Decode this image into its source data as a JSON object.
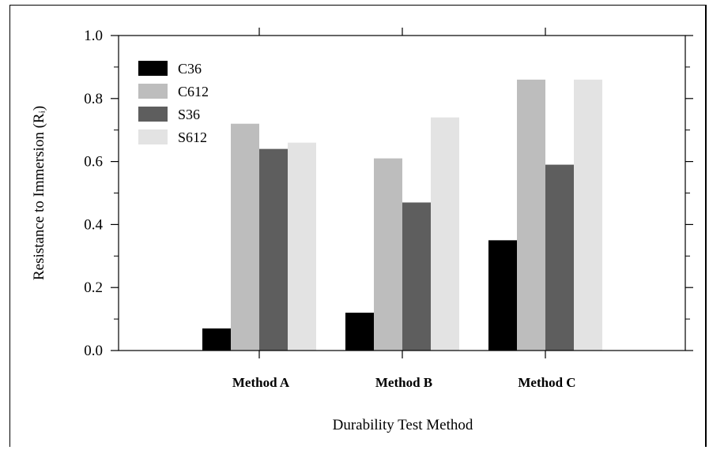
{
  "chart_data": {
    "type": "bar",
    "title": "",
    "xlabel": "Durability Test Method",
    "ylabel": "Resistance to Immersion (Rᵢ)",
    "ylim": [
      0,
      1.0
    ],
    "yticks": [
      "0.0",
      "0.2",
      "0.4",
      "0.6",
      "0.8",
      "1.0"
    ],
    "grid": false,
    "legend_position": "top-left",
    "categories": [
      "Method A",
      "Method B",
      "Method C"
    ],
    "series": [
      {
        "name": "C36",
        "color": "#000000",
        "values": [
          0.07,
          0.12,
          0.35
        ]
      },
      {
        "name": "C612",
        "color": "#bdbdbd",
        "values": [
          0.72,
          0.61,
          0.86
        ]
      },
      {
        "name": "S36",
        "color": "#5e5e5e",
        "values": [
          0.64,
          0.47,
          0.59
        ]
      },
      {
        "name": "S612",
        "color": "#e3e3e3",
        "values": [
          0.66,
          0.74,
          0.86
        ]
      }
    ]
  }
}
